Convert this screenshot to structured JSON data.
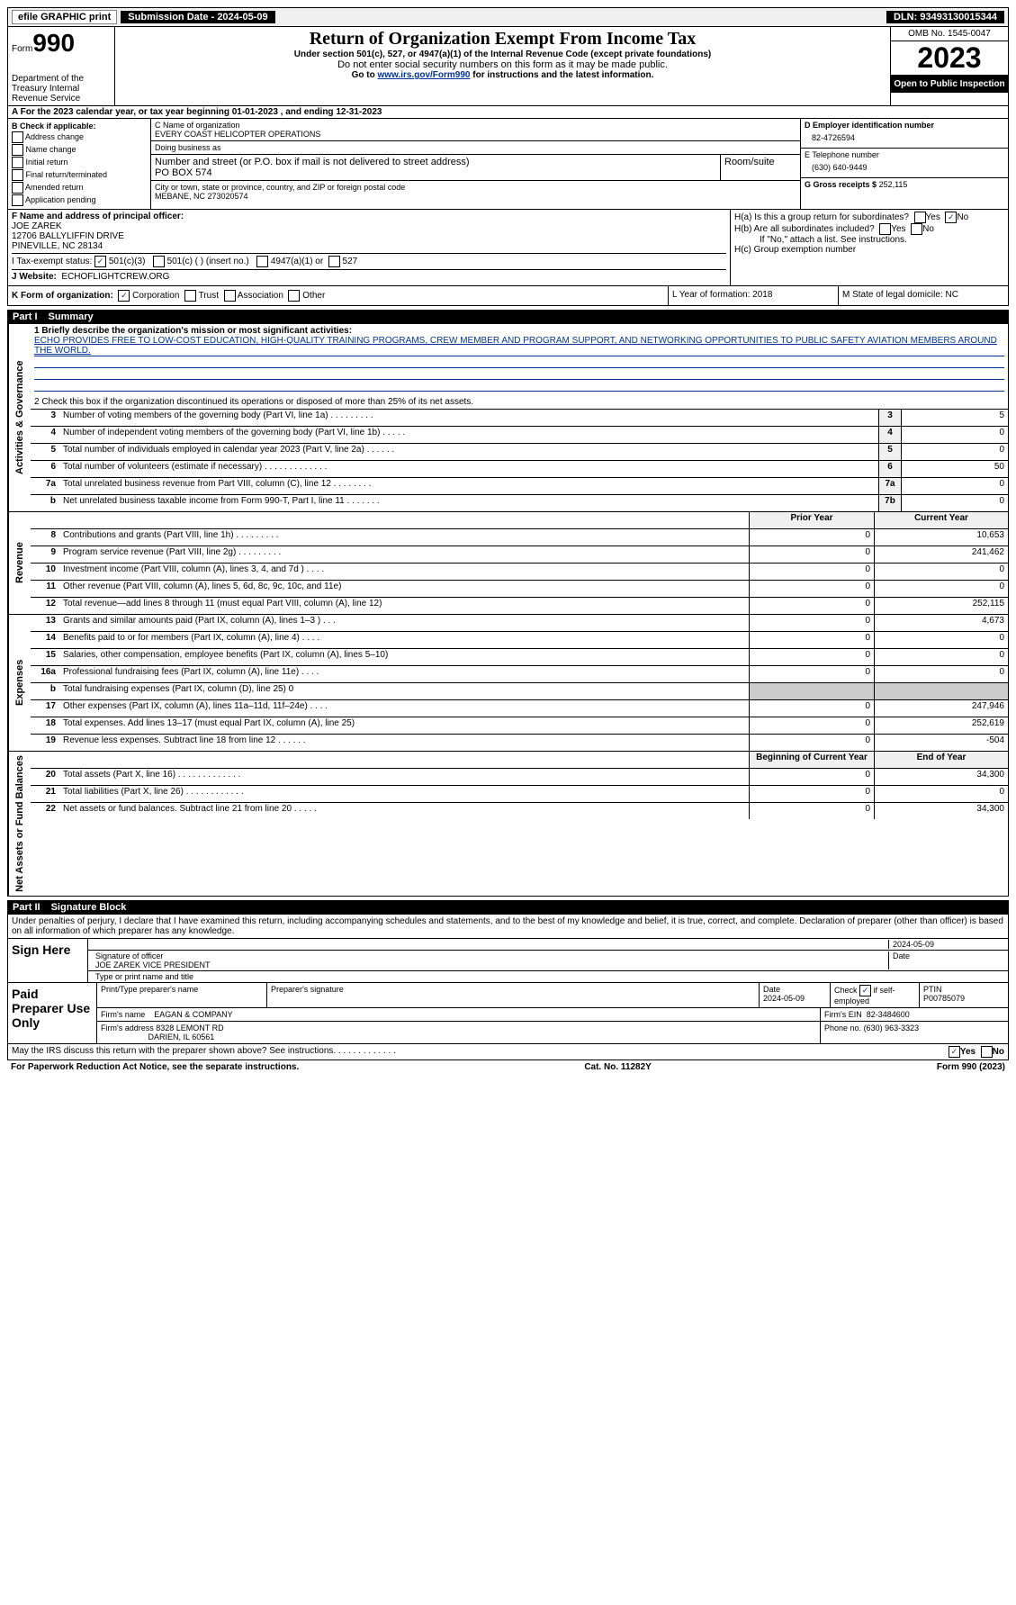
{
  "topbar": {
    "efile": "efile GRAPHIC print",
    "sub_date_label": "Submission Date - 2024-05-09",
    "dln": "DLN: 93493130015344"
  },
  "header": {
    "form_prefix": "Form",
    "form_num": "990",
    "dept": "Department of the Treasury Internal Revenue Service",
    "title": "Return of Organization Exempt From Income Tax",
    "sub1": "Under section 501(c), 527, or 4947(a)(1) of the Internal Revenue Code (except private foundations)",
    "sub2": "Do not enter social security numbers on this form as it may be made public.",
    "sub3_pre": "Go to ",
    "sub3_link": "www.irs.gov/Form990",
    "sub3_post": " for instructions and the latest information.",
    "omb": "OMB No. 1545-0047",
    "year": "2023",
    "open": "Open to Public Inspection"
  },
  "row_a": "A  For the 2023 calendar year, or tax year beginning 01-01-2023    , and ending 12-31-2023",
  "col_b": {
    "hdr": "B Check if applicable:",
    "items": [
      "Address change",
      "Name change",
      "Initial return",
      "Final return/terminated",
      "Amended return",
      "Application pending"
    ]
  },
  "col_c": {
    "name_lbl": "C Name of organization",
    "name": "EVERY COAST HELICOPTER OPERATIONS",
    "dba_lbl": "Doing business as",
    "dba": "",
    "street_lbl": "Number and street (or P.O. box if mail is not delivered to street address)",
    "street": "PO BOX 574",
    "room_lbl": "Room/suite",
    "city_lbl": "City or town, state or province, country, and ZIP or foreign postal code",
    "city": "MEBANE, NC  273020574"
  },
  "col_d": {
    "ein_lbl": "D Employer identification number",
    "ein": "82-4726594",
    "tel_lbl": "E Telephone number",
    "tel": "(630) 640-9449",
    "gross_lbl": "G Gross receipts $",
    "gross": "252,115"
  },
  "fij": {
    "f_lbl": "F  Name and address of principal officer:",
    "f_name": "JOE ZAREK",
    "f_addr1": "12706 BALLYLIFFIN DRIVE",
    "f_addr2": "PINEVILLE, NC  28134",
    "i_lbl": "I   Tax-exempt status:",
    "i_501c3": "501(c)(3)",
    "i_501c": "501(c) (  ) (insert no.)",
    "i_4947": "4947(a)(1) or",
    "i_527": "527",
    "j_lbl": "J   Website:",
    "j_val": "ECHOFLIGHTCREW.ORG",
    "ha": "H(a)  Is this a group return for subordinates?",
    "hb": "H(b)  Are all subordinates included?",
    "hb_note": "If \"No,\" attach a list. See instructions.",
    "hc": "H(c)  Group exemption number",
    "yes": "Yes",
    "no": "No"
  },
  "klm": {
    "k_lbl": "K Form of organization:",
    "k_corp": "Corporation",
    "k_trust": "Trust",
    "k_assoc": "Association",
    "k_other": "Other",
    "l": "L Year of formation: 2018",
    "m": "M State of legal domicile: NC"
  },
  "part1": {
    "num": "Part I",
    "title": "Summary"
  },
  "mission": {
    "lbl": "1   Briefly describe the organization's mission or most significant activities:",
    "txt": "ECHO PROVIDES FREE TO LOW-COST EDUCATION, HIGH-QUALITY TRAINING PROGRAMS, CREW MEMBER AND PROGRAM SUPPORT, AND NETWORKING OPPORTUNITIES TO PUBLIC SAFETY AVIATION MEMBERS AROUND THE WORLD.",
    "line2": "2   Check this box   if the organization discontinued its operations or disposed of more than 25% of its net assets."
  },
  "gov_rows": [
    {
      "n": "3",
      "t": "Number of voting members of the governing body (Part VI, line 1a)   .    .    .    .    .    .    .    .    .",
      "b": "3",
      "v": "5"
    },
    {
      "n": "4",
      "t": "Number of independent voting members of the governing body (Part VI, line 1b)   .    .    .    .    .",
      "b": "4",
      "v": "0"
    },
    {
      "n": "5",
      "t": "Total number of individuals employed in calendar year 2023 (Part V, line 2a)   .    .    .    .    .    .",
      "b": "5",
      "v": "0"
    },
    {
      "n": "6",
      "t": "Total number of volunteers (estimate if necessary)   .    .    .    .    .    .    .    .    .    .    .    .    .",
      "b": "6",
      "v": "50"
    },
    {
      "n": "7a",
      "t": "Total unrelated business revenue from Part VIII, column (C), line 12   .    .    .    .    .    .    .    .",
      "b": "7a",
      "v": "0"
    },
    {
      "n": "b",
      "t": "Net unrelated business taxable income from Form 990-T, Part I, line 11   .    .    .    .    .    .    .",
      "b": "7b",
      "v": "0"
    }
  ],
  "py_hdr": "Prior Year",
  "cy_hdr": "Current Year",
  "rev_rows": [
    {
      "n": "8",
      "t": "Contributions and grants (Part VIII, line 1h)   .    .    .    .    .    .    .    .    .",
      "py": "0",
      "cy": "10,653"
    },
    {
      "n": "9",
      "t": "Program service revenue (Part VIII, line 2g)   .    .    .    .    .    .    .    .    .",
      "py": "0",
      "cy": "241,462"
    },
    {
      "n": "10",
      "t": "Investment income (Part VIII, column (A), lines 3, 4, and 7d )   .    .    .    .",
      "py": "0",
      "cy": "0"
    },
    {
      "n": "11",
      "t": "Other revenue (Part VIII, column (A), lines 5, 6d, 8c, 9c, 10c, and 11e)",
      "py": "0",
      "cy": "0"
    },
    {
      "n": "12",
      "t": "Total revenue—add lines 8 through 11 (must equal Part VIII, column (A), line 12)",
      "py": "0",
      "cy": "252,115"
    }
  ],
  "exp_rows": [
    {
      "n": "13",
      "t": "Grants and similar amounts paid (Part IX, column (A), lines 1–3 )   .    .    .",
      "py": "0",
      "cy": "4,673"
    },
    {
      "n": "14",
      "t": "Benefits paid to or for members (Part IX, column (A), line 4)   .    .    .    .",
      "py": "0",
      "cy": "0"
    },
    {
      "n": "15",
      "t": "Salaries, other compensation, employee benefits (Part IX, column (A), lines 5–10)",
      "py": "0",
      "cy": "0"
    },
    {
      "n": "16a",
      "t": "Professional fundraising fees (Part IX, column (A), line 11e)   .    .    .    .",
      "py": "0",
      "cy": "0"
    },
    {
      "n": "b",
      "t": "Total fundraising expenses (Part IX, column (D), line 25) 0",
      "py": "",
      "cy": "",
      "shade": true
    },
    {
      "n": "17",
      "t": "Other expenses (Part IX, column (A), lines 11a–11d, 11f–24e)   .    .    .    .",
      "py": "0",
      "cy": "247,946"
    },
    {
      "n": "18",
      "t": "Total expenses. Add lines 13–17 (must equal Part IX, column (A), line 25)",
      "py": "0",
      "cy": "252,619"
    },
    {
      "n": "19",
      "t": "Revenue less expenses. Subtract line 18 from line 12   .    .    .    .    .    .",
      "py": "0",
      "cy": "-504"
    }
  ],
  "boy_hdr": "Beginning of Current Year",
  "eoy_hdr": "End of Year",
  "net_rows": [
    {
      "n": "20",
      "t": "Total assets (Part X, line 16)   .    .    .    .    .    .    .    .    .    .    .    .    .",
      "py": "0",
      "cy": "34,300"
    },
    {
      "n": "21",
      "t": "Total liabilities (Part X, line 26)   .    .    .    .    .    .    .    .    .    .    .    .",
      "py": "0",
      "cy": "0"
    },
    {
      "n": "22",
      "t": "Net assets or fund balances. Subtract line 21 from line 20   .    .    .    .    .",
      "py": "0",
      "cy": "34,300"
    }
  ],
  "vtabs": {
    "gov": "Activities & Governance",
    "rev": "Revenue",
    "exp": "Expenses",
    "net": "Net Assets or Fund Balances"
  },
  "part2": {
    "num": "Part II",
    "title": "Signature Block"
  },
  "sig": {
    "intro": "Under penalties of perjury, I declare that I have examined this return, including accompanying schedules and statements, and to the best of my knowledge and belief, it is true, correct, and complete. Declaration of preparer (other than officer) is based on all information of which preparer has any knowledge.",
    "sign_here": "Sign Here",
    "sig_lbl": "Signature of officer",
    "sig_name": "JOE ZAREK  VICE PRESIDENT",
    "sig_type_lbl": "Type or print name and title",
    "date": "2024-05-09",
    "date_lbl": "Date"
  },
  "paid": {
    "lbl": "Paid Preparer Use Only",
    "print_lbl": "Print/Type preparer's name",
    "prep_sig_lbl": "Preparer's signature",
    "date_lbl": "Date",
    "date": "2024-05-09",
    "check_lbl": "Check",
    "check_if": "if self-employed",
    "ptin_lbl": "PTIN",
    "ptin": "P00785079",
    "firm_name_lbl": "Firm's name",
    "firm_name": "EAGAN & COMPANY",
    "firm_ein_lbl": "Firm's EIN",
    "firm_ein": "82-3484600",
    "firm_addr_lbl": "Firm's address",
    "firm_addr1": "8328 LEMONT RD",
    "firm_addr2": "DARIEN, IL  60561",
    "phone_lbl": "Phone no.",
    "phone": "(630) 963-3323"
  },
  "footer": {
    "discuss": "May the IRS discuss this return with the preparer shown above? See instructions.   .    .    .    .    .    .    .    .    .    .    .    .",
    "yes": "Yes",
    "no": "No",
    "pra": "For Paperwork Reduction Act Notice, see the separate instructions.",
    "cat": "Cat. No. 11282Y",
    "form": "Form 990 (2023)"
  }
}
